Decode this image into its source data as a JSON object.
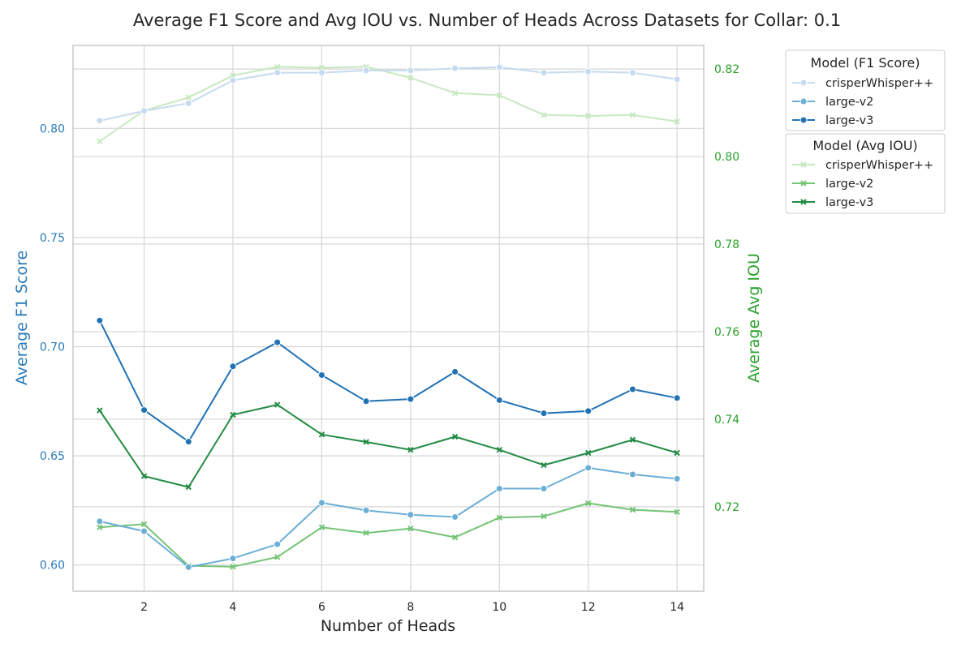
{
  "chart_data": {
    "type": "line",
    "title": "Average F1 Score and Avg IOU vs. Number of Heads Across Datasets for Collar: 0.1",
    "xlabel": "Number of Heads",
    "ylabel_left": "Average F1 Score",
    "ylabel_right": "Average Avg IOU",
    "left_axis_color": "#2a7ab9",
    "right_axis_color": "#2ca02c",
    "x": [
      1,
      2,
      3,
      4,
      5,
      6,
      7,
      8,
      9,
      10,
      11,
      12,
      13,
      14
    ],
    "xticks": [
      "2",
      "4",
      "6",
      "8",
      "10",
      "12",
      "14"
    ],
    "xlim": [
      0.4,
      14.6
    ],
    "ylim_left": [
      0.588,
      0.838
    ],
    "ylim_right": [
      0.7007,
      0.8254
    ],
    "yticks_left": [
      "0.60",
      "0.65",
      "0.70",
      "0.75",
      "0.80"
    ],
    "yticks_right": [
      "0.72",
      "0.74",
      "0.76",
      "0.78",
      "0.80",
      "0.82"
    ],
    "grid": true,
    "series_f1": [
      {
        "name": "crisperWhisper++",
        "color": "#c6dbef",
        "marker": "circle",
        "values": [
          0.8035,
          0.808,
          0.8115,
          0.822,
          0.8255,
          0.8255,
          0.8265,
          0.8265,
          0.8275,
          0.828,
          0.8255,
          0.826,
          0.8255,
          0.8225
        ]
      },
      {
        "name": "large-v2",
        "color": "#6baed6",
        "marker": "circle",
        "values": [
          0.62,
          0.6155,
          0.599,
          0.603,
          0.6095,
          0.6285,
          0.625,
          0.623,
          0.622,
          0.635,
          0.635,
          0.6445,
          0.6415,
          0.6395
        ]
      },
      {
        "name": "large-v3",
        "color": "#2171b5",
        "marker": "circle",
        "values": [
          0.712,
          0.671,
          0.6565,
          0.691,
          0.702,
          0.687,
          0.675,
          0.676,
          0.6885,
          0.6755,
          0.6695,
          0.6705,
          0.6805,
          0.6765
        ]
      }
    ],
    "series_iou": [
      {
        "name": "crisperWhisper++",
        "color": "#c7e9c0",
        "marker": "x",
        "values": [
          0.8035,
          0.8105,
          0.8135,
          0.8185,
          0.8205,
          0.8203,
          0.8205,
          0.818,
          0.8145,
          0.814,
          0.8095,
          0.8093,
          0.8095,
          0.808
        ]
      },
      {
        "name": "large-v2",
        "color": "#74c476",
        "marker": "x",
        "values": [
          0.7153,
          0.716,
          0.7065,
          0.7063,
          0.7085,
          0.7153,
          0.714,
          0.715,
          0.713,
          0.7175,
          0.7178,
          0.7208,
          0.7193,
          0.7188
        ]
      },
      {
        "name": "large-v3",
        "color": "#238b45",
        "marker": "x",
        "values": [
          0.742,
          0.727,
          0.7245,
          0.741,
          0.7433,
          0.7365,
          0.7348,
          0.733,
          0.736,
          0.733,
          0.7295,
          0.7323,
          0.7353,
          0.7323
        ]
      }
    ],
    "legend_f1_title": "Model (F1 Score)",
    "legend_iou_title": "Model (Avg IOU)",
    "legend_position": "outside-top-right"
  }
}
